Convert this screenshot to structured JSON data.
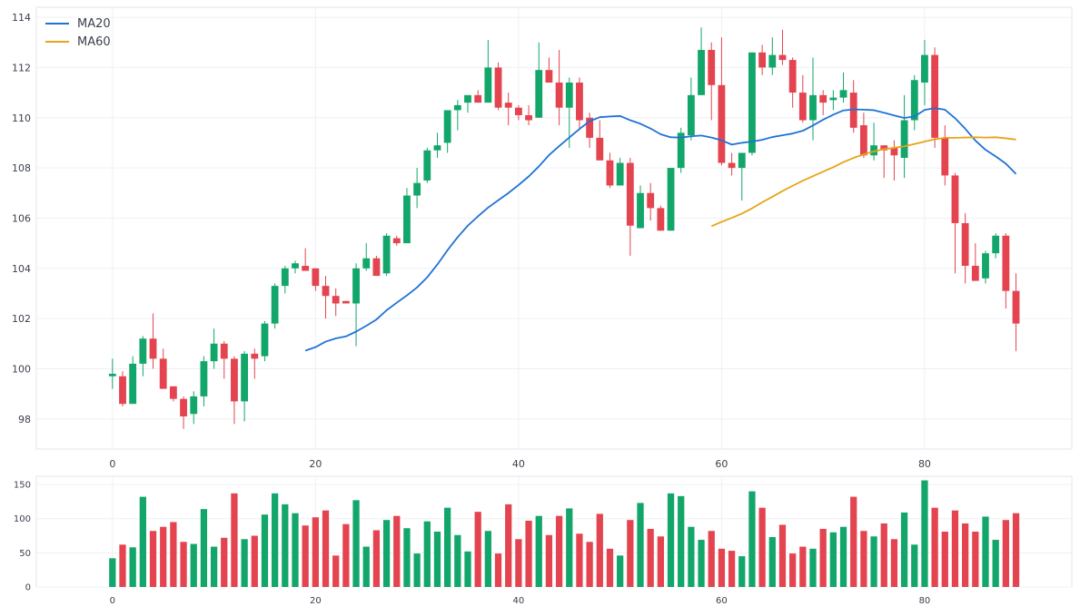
{
  "colors": {
    "up": "#12a66a",
    "down": "#e4444f",
    "ma20": "#1f72d6",
    "ma60": "#e8a317"
  },
  "chart_data": [
    {
      "type": "candlestick",
      "title": "",
      "xlabel": "",
      "ylabel": "",
      "xlim": [
        -7.5,
        94.5
      ],
      "ylim": [
        96.8,
        114.4
      ],
      "grid": true,
      "legend_position": "top-left",
      "x_ticks": [
        0,
        20,
        40,
        60,
        80
      ],
      "y_ticks": [
        98,
        100,
        102,
        104,
        106,
        108,
        110,
        112,
        114
      ],
      "ohlc": [
        [
          99.7,
          100.4,
          99.2,
          99.8
        ],
        [
          99.7,
          99.9,
          98.5,
          98.6
        ],
        [
          98.6,
          100.5,
          98.6,
          100.2
        ],
        [
          100.2,
          101.3,
          99.7,
          101.2
        ],
        [
          101.2,
          102.2,
          100.0,
          100.4
        ],
        [
          100.4,
          100.8,
          99.2,
          99.2
        ],
        [
          99.3,
          99.3,
          98.7,
          98.8
        ],
        [
          98.8,
          98.9,
          97.6,
          98.1
        ],
        [
          98.2,
          99.1,
          97.8,
          98.9
        ],
        [
          98.9,
          100.5,
          98.5,
          100.3
        ],
        [
          100.3,
          101.6,
          100.0,
          101.0
        ],
        [
          101.0,
          101.1,
          99.6,
          100.4
        ],
        [
          100.4,
          100.5,
          97.8,
          98.7
        ],
        [
          98.7,
          100.7,
          97.9,
          100.6
        ],
        [
          100.6,
          100.8,
          99.6,
          100.4
        ],
        [
          100.5,
          101.9,
          100.3,
          101.8
        ],
        [
          101.8,
          103.4,
          101.6,
          103.3
        ],
        [
          103.3,
          104.1,
          103.0,
          104.0
        ],
        [
          104.0,
          104.3,
          103.8,
          104.2
        ],
        [
          104.1,
          104.8,
          103.9,
          103.9
        ],
        [
          104.0,
          104.0,
          103.1,
          103.3
        ],
        [
          103.3,
          103.7,
          102.0,
          102.9
        ],
        [
          102.9,
          103.2,
          102.1,
          102.6
        ],
        [
          102.7,
          102.7,
          102.6,
          102.6
        ],
        [
          102.6,
          104.2,
          100.9,
          104.0
        ],
        [
          104.0,
          105.0,
          103.9,
          104.4
        ],
        [
          104.4,
          104.5,
          103.7,
          103.7
        ],
        [
          103.8,
          105.4,
          103.7,
          105.3
        ],
        [
          105.2,
          105.3,
          104.9,
          105.0
        ],
        [
          105.0,
          107.2,
          105.0,
          106.9
        ],
        [
          106.9,
          108.0,
          106.4,
          107.4
        ],
        [
          107.5,
          108.8,
          107.4,
          108.7
        ],
        [
          108.7,
          109.4,
          108.4,
          108.9
        ],
        [
          109.0,
          110.3,
          108.6,
          110.3
        ],
        [
          110.3,
          110.7,
          109.5,
          110.5
        ],
        [
          110.6,
          110.9,
          110.2,
          110.9
        ],
        [
          110.9,
          111.1,
          110.6,
          110.6
        ],
        [
          110.6,
          113.1,
          110.6,
          112.0
        ],
        [
          112.0,
          112.2,
          110.3,
          110.4
        ],
        [
          110.6,
          111.0,
          109.7,
          110.4
        ],
        [
          110.4,
          110.5,
          109.9,
          110.1
        ],
        [
          110.1,
          110.5,
          109.7,
          109.9
        ],
        [
          110.0,
          113.0,
          110.0,
          111.9
        ],
        [
          111.9,
          112.4,
          111.4,
          111.4
        ],
        [
          111.4,
          112.7,
          109.7,
          110.4
        ],
        [
          110.4,
          111.6,
          108.8,
          111.4
        ],
        [
          111.4,
          111.6,
          109.5,
          109.9
        ],
        [
          110.0,
          110.2,
          108.8,
          109.2
        ],
        [
          109.2,
          109.9,
          108.3,
          108.3
        ],
        [
          108.3,
          108.6,
          107.2,
          107.3
        ],
        [
          107.3,
          108.4,
          107.3,
          108.2
        ],
        [
          108.2,
          108.4,
          104.5,
          105.7
        ],
        [
          105.6,
          107.3,
          105.6,
          107.0
        ],
        [
          107.0,
          107.4,
          105.9,
          106.4
        ],
        [
          106.4,
          106.5,
          105.5,
          105.5
        ],
        [
          105.5,
          107.9,
          105.5,
          108.0
        ],
        [
          108.0,
          109.6,
          107.8,
          109.4
        ],
        [
          109.3,
          111.6,
          109.1,
          110.9
        ],
        [
          110.9,
          113.6,
          110.9,
          112.7
        ],
        [
          112.7,
          113.0,
          109.9,
          111.3
        ],
        [
          111.3,
          113.2,
          108.1,
          108.2
        ],
        [
          108.2,
          108.6,
          107.7,
          108.0
        ],
        [
          108.0,
          108.6,
          106.7,
          108.6
        ],
        [
          108.6,
          112.6,
          108.5,
          112.6
        ],
        [
          112.6,
          112.9,
          111.7,
          112.0
        ],
        [
          112.0,
          113.2,
          111.7,
          112.5
        ],
        [
          112.5,
          113.5,
          112.1,
          112.3
        ],
        [
          112.3,
          112.4,
          110.4,
          111.0
        ],
        [
          111.0,
          111.7,
          109.8,
          109.9
        ],
        [
          109.9,
          112.4,
          109.1,
          110.9
        ],
        [
          110.9,
          111.1,
          110.1,
          110.6
        ],
        [
          110.7,
          111.1,
          110.3,
          110.8
        ],
        [
          110.8,
          111.8,
          110.6,
          111.1
        ],
        [
          111.0,
          111.5,
          109.4,
          109.6
        ],
        [
          109.7,
          110.2,
          108.4,
          108.5
        ],
        [
          108.5,
          109.8,
          108.3,
          108.9
        ],
        [
          108.9,
          108.9,
          107.6,
          108.7
        ],
        [
          108.8,
          109.1,
          107.5,
          108.5
        ],
        [
          108.4,
          110.9,
          107.6,
          109.9
        ],
        [
          109.9,
          111.7,
          109.5,
          111.5
        ],
        [
          111.4,
          113.1,
          110.5,
          112.5
        ],
        [
          112.5,
          112.8,
          108.8,
          109.2
        ],
        [
          109.2,
          109.7,
          107.3,
          107.7
        ],
        [
          107.7,
          107.8,
          103.8,
          105.8
        ],
        [
          105.8,
          106.2,
          103.4,
          104.1
        ],
        [
          104.1,
          105.0,
          103.5,
          103.5
        ],
        [
          103.6,
          104.7,
          103.4,
          104.6
        ],
        [
          104.6,
          105.4,
          104.4,
          105.3
        ],
        [
          105.3,
          105.4,
          102.4,
          103.1
        ],
        [
          103.1,
          103.8,
          100.7,
          101.8
        ]
      ],
      "volume": [
        42,
        62,
        58,
        132,
        82,
        88,
        95,
        66,
        63,
        114,
        59,
        72,
        137,
        70,
        75,
        106,
        137,
        121,
        108,
        90,
        102,
        112,
        46,
        92,
        127,
        59,
        83,
        98,
        104,
        86,
        49,
        96,
        81,
        116,
        76,
        52,
        110,
        82,
        49,
        121,
        70,
        97,
        104,
        76,
        104,
        115,
        78,
        66,
        107,
        56,
        46,
        98,
        123,
        85,
        74,
        137,
        133,
        88,
        69,
        82,
        56,
        53,
        45,
        140,
        116,
        73,
        91,
        49,
        59,
        56,
        85,
        80,
        88,
        132,
        82,
        74,
        93,
        70,
        109,
        62,
        156,
        116,
        81,
        112,
        93,
        81,
        103,
        69,
        98,
        108
      ],
      "volume_ylim": [
        0,
        162
      ],
      "volume_y_ticks": [
        0,
        50,
        100,
        150
      ],
      "series": [
        {
          "name": "MA20",
          "x": [
            19,
            20,
            21,
            22,
            23,
            24,
            25,
            26,
            27,
            28,
            29,
            30,
            31,
            32,
            33,
            34,
            35,
            36,
            37,
            38,
            39,
            40,
            41,
            42,
            43,
            44,
            45,
            46,
            47,
            48,
            49,
            50,
            51,
            52,
            53,
            54,
            55,
            56,
            57,
            58,
            59,
            60,
            61,
            62,
            63,
            64,
            65,
            66,
            67,
            68,
            69,
            70,
            71,
            72,
            73,
            74,
            75,
            76,
            77,
            78,
            79,
            80,
            81,
            82,
            83,
            84,
            85,
            86,
            87,
            88,
            89
          ],
          "values": [
            100.72,
            100.86,
            101.08,
            101.21,
            101.29,
            101.48,
            101.71,
            101.96,
            102.33,
            102.63,
            102.92,
            103.24,
            103.64,
            104.15,
            104.72,
            105.24,
            105.7,
            106.07,
            106.42,
            106.71,
            107.0,
            107.32,
            107.66,
            108.06,
            108.51,
            108.87,
            109.21,
            109.55,
            109.86,
            110.02,
            110.05,
            110.07,
            109.9,
            109.76,
            109.57,
            109.34,
            109.22,
            109.21,
            109.26,
            109.29,
            109.21,
            109.1,
            108.93,
            109.0,
            109.05,
            109.12,
            109.23,
            109.3,
            109.37,
            109.48,
            109.69,
            109.92,
            110.12,
            110.29,
            110.33,
            110.32,
            110.3,
            110.2,
            110.09,
            109.99,
            110.05,
            110.31,
            110.38,
            110.32,
            109.98,
            109.56,
            109.09,
            108.72,
            108.46,
            108.17,
            107.76
          ]
        },
        {
          "name": "MA60",
          "x": [
            59,
            60,
            61,
            62,
            63,
            64,
            65,
            66,
            67,
            68,
            69,
            70,
            71,
            72,
            73,
            74,
            75,
            76,
            77,
            78,
            79,
            80,
            81,
            82,
            83,
            84,
            85,
            86,
            87,
            88,
            89
          ],
          "values": [
            105.68,
            105.85,
            106.01,
            106.18,
            106.39,
            106.63,
            106.85,
            107.08,
            107.29,
            107.49,
            107.67,
            107.85,
            108.03,
            108.23,
            108.4,
            108.54,
            108.66,
            108.75,
            108.8,
            108.86,
            108.95,
            109.05,
            109.14,
            109.2,
            109.2,
            109.21,
            109.22,
            109.21,
            109.22,
            109.18,
            109.13
          ]
        }
      ]
    }
  ]
}
